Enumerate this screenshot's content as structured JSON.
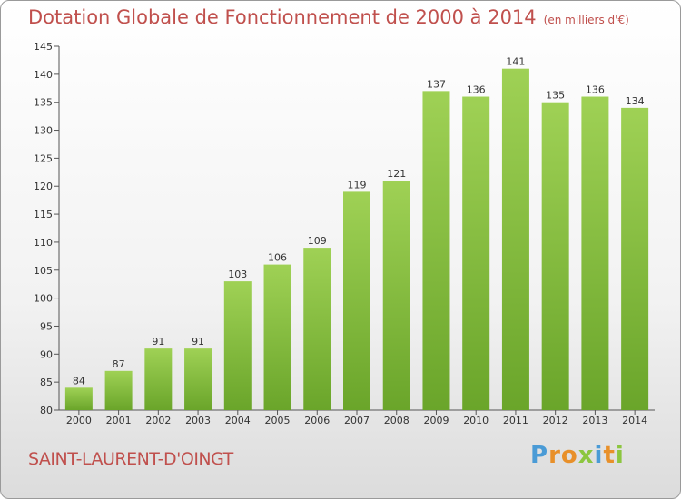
{
  "title": "Dotation Globale de Fonctionnement de 2000 à 2014",
  "subtitle": "(en milliers d'€)",
  "place": "SAINT-LAURENT-D'OINGT",
  "logo": {
    "letters": [
      "P",
      "r",
      "o",
      "x",
      "i",
      "t",
      "i"
    ],
    "colors": [
      "#4a9bd6",
      "#e8902a",
      "#e8902a",
      "#8cc63f",
      "#4a9bd6",
      "#e8902a",
      "#8cc63f"
    ]
  },
  "colors": {
    "title": "#c0504d",
    "bar_top": "#9fd155",
    "bar_bottom": "#6aa52a"
  },
  "chart_data": {
    "type": "bar",
    "title": "Dotation Globale de Fonctionnement de 2000 à 2014",
    "subtitle": "(en milliers d'€)",
    "categories": [
      "2000",
      "2001",
      "2002",
      "2003",
      "2004",
      "2005",
      "2006",
      "2007",
      "2008",
      "2009",
      "2010",
      "2011",
      "2012",
      "2013",
      "2014"
    ],
    "values": [
      84,
      87,
      91,
      91,
      103,
      106,
      109,
      119,
      121,
      137,
      136,
      141,
      135,
      136,
      134
    ],
    "ylim": [
      80,
      145
    ],
    "yticks": [
      80,
      85,
      90,
      95,
      100,
      105,
      110,
      115,
      120,
      125,
      130,
      135,
      140,
      145
    ],
    "grid": false,
    "data_labels": true
  }
}
